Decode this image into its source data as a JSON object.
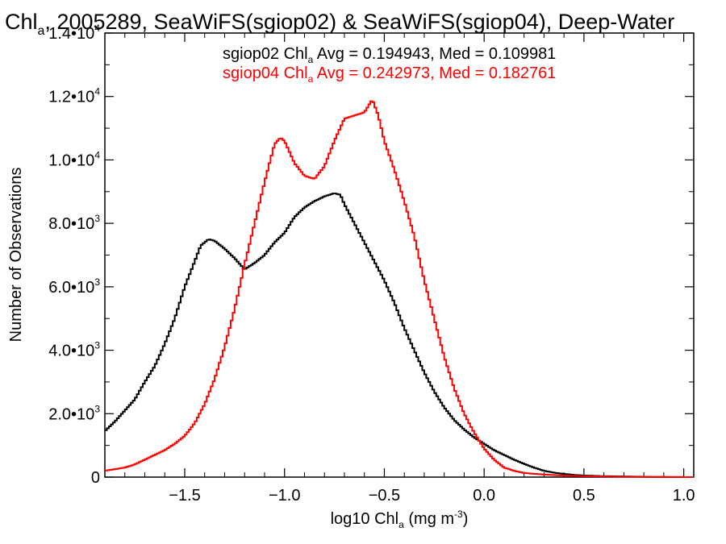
{
  "chart_data": {
    "type": "line",
    "title_parts": [
      "Chl",
      "a",
      ", 2005289, SeaWiFS(sgiop02) & SeaWiFS(sgiop04), Deep-Water"
    ],
    "xlabel_parts": [
      "log10 Chl",
      "a",
      " (mg m",
      "-3",
      ")"
    ],
    "ylabel": "Number of Observations",
    "xlim": [
      -1.9,
      1.05
    ],
    "ylim": [
      0,
      14000
    ],
    "x_ticks": [
      -1.5,
      -1.0,
      -0.5,
      0.0,
      0.5,
      1.0
    ],
    "x_tick_labels": [
      "−1.5",
      "−1.0",
      "−0.5",
      "0.0",
      "0.5",
      "1.0"
    ],
    "y_ticks": [
      {
        "value": 0,
        "mant": "0",
        "exp": ""
      },
      {
        "value": 2000,
        "mant": "2.0•10",
        "exp": "3"
      },
      {
        "value": 4000,
        "mant": "4.0•10",
        "exp": "3"
      },
      {
        "value": 6000,
        "mant": "6.0•10",
        "exp": "3"
      },
      {
        "value": 8000,
        "mant": "8.0•10",
        "exp": "3"
      },
      {
        "value": 10000,
        "mant": "1.0•10",
        "exp": "4"
      },
      {
        "value": 12000,
        "mant": "1.2•10",
        "exp": "4"
      },
      {
        "value": 14000,
        "mant": "1.4•10",
        "exp": "4"
      }
    ],
    "grid": false,
    "step_width": 0.01,
    "series": [
      {
        "name": "sgiop02",
        "color": "#000000",
        "legend_parts": [
          "sgiop02 Chl",
          "a",
          " Avg = 0.194943, Med = 0.109981"
        ],
        "points": [
          [
            -1.9,
            1450
          ],
          [
            -1.85,
            1750
          ],
          [
            -1.8,
            2100
          ],
          [
            -1.75,
            2450
          ],
          [
            -1.7,
            3000
          ],
          [
            -1.65,
            3500
          ],
          [
            -1.6,
            4200
          ],
          [
            -1.55,
            5000
          ],
          [
            -1.5,
            6000
          ],
          [
            -1.45,
            6800
          ],
          [
            -1.42,
            7300
          ],
          [
            -1.38,
            7500
          ],
          [
            -1.35,
            7450
          ],
          [
            -1.3,
            7200
          ],
          [
            -1.25,
            6900
          ],
          [
            -1.2,
            6550
          ],
          [
            -1.15,
            6750
          ],
          [
            -1.1,
            7000
          ],
          [
            -1.05,
            7400
          ],
          [
            -1.0,
            7700
          ],
          [
            -0.95,
            8200
          ],
          [
            -0.9,
            8500
          ],
          [
            -0.85,
            8700
          ],
          [
            -0.8,
            8850
          ],
          [
            -0.75,
            8950
          ],
          [
            -0.72,
            8900
          ],
          [
            -0.7,
            8600
          ],
          [
            -0.65,
            8000
          ],
          [
            -0.6,
            7400
          ],
          [
            -0.55,
            6800
          ],
          [
            -0.5,
            6200
          ],
          [
            -0.45,
            5500
          ],
          [
            -0.4,
            4700
          ],
          [
            -0.35,
            4000
          ],
          [
            -0.3,
            3300
          ],
          [
            -0.25,
            2700
          ],
          [
            -0.2,
            2200
          ],
          [
            -0.15,
            1800
          ],
          [
            -0.1,
            1500
          ],
          [
            -0.05,
            1250
          ],
          [
            0.0,
            1050
          ],
          [
            0.05,
            850
          ],
          [
            0.1,
            700
          ],
          [
            0.15,
            550
          ],
          [
            0.2,
            420
          ],
          [
            0.25,
            300
          ],
          [
            0.3,
            200
          ],
          [
            0.35,
            140
          ],
          [
            0.4,
            100
          ],
          [
            0.45,
            70
          ],
          [
            0.5,
            50
          ],
          [
            0.6,
            30
          ],
          [
            0.7,
            20
          ],
          [
            0.8,
            10
          ],
          [
            0.9,
            5
          ],
          [
            1.05,
            0
          ]
        ]
      },
      {
        "name": "sgiop04",
        "color": "#ff0000",
        "legend_parts": [
          "sgiop04 Chl",
          "a",
          " Avg = 0.242973, Med = 0.182761"
        ],
        "points": [
          [
            -1.9,
            200
          ],
          [
            -1.85,
            250
          ],
          [
            -1.8,
            300
          ],
          [
            -1.75,
            400
          ],
          [
            -1.7,
            550
          ],
          [
            -1.65,
            700
          ],
          [
            -1.6,
            850
          ],
          [
            -1.55,
            1050
          ],
          [
            -1.5,
            1300
          ],
          [
            -1.45,
            1700
          ],
          [
            -1.4,
            2300
          ],
          [
            -1.35,
            3100
          ],
          [
            -1.3,
            4100
          ],
          [
            -1.25,
            5300
          ],
          [
            -1.2,
            6700
          ],
          [
            -1.15,
            8000
          ],
          [
            -1.1,
            9300
          ],
          [
            -1.05,
            10500
          ],
          [
            -1.02,
            10700
          ],
          [
            -1.0,
            10600
          ],
          [
            -0.95,
            9900
          ],
          [
            -0.9,
            9500
          ],
          [
            -0.85,
            9400
          ],
          [
            -0.8,
            9800
          ],
          [
            -0.75,
            10600
          ],
          [
            -0.7,
            11300
          ],
          [
            -0.65,
            11400
          ],
          [
            -0.6,
            11500
          ],
          [
            -0.56,
            11900
          ],
          [
            -0.53,
            11400
          ],
          [
            -0.5,
            10600
          ],
          [
            -0.45,
            9700
          ],
          [
            -0.4,
            8700
          ],
          [
            -0.35,
            7600
          ],
          [
            -0.3,
            6200
          ],
          [
            -0.25,
            5000
          ],
          [
            -0.2,
            3800
          ],
          [
            -0.15,
            2800
          ],
          [
            -0.1,
            2000
          ],
          [
            -0.05,
            1400
          ],
          [
            0.0,
            900
          ],
          [
            0.05,
            550
          ],
          [
            0.1,
            300
          ],
          [
            0.15,
            200
          ],
          [
            0.2,
            130
          ],
          [
            0.3,
            80
          ],
          [
            0.4,
            50
          ],
          [
            0.5,
            30
          ],
          [
            0.7,
            10
          ],
          [
            1.05,
            0
          ]
        ]
      }
    ]
  }
}
